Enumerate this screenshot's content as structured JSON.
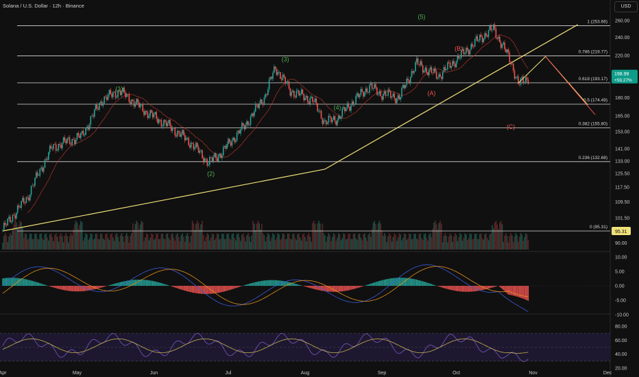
{
  "header": {
    "title": "Solana / U.S. Dollar · 12h · Binance",
    "currency": "USD"
  },
  "chart_data": {
    "type": "candlestick",
    "main_axis": {
      "ticks": [
        "260.00",
        "240.00",
        "220.00",
        "200.00",
        "180.00",
        "165.00",
        "153.00",
        "141.00",
        "133.00",
        "125.50",
        "117.50",
        "109.50",
        "101.50",
        "95.31",
        "90.00"
      ],
      "ylim": [
        88,
        268
      ]
    },
    "price_badge": {
      "price": "198.99",
      "change": "+59.27%"
    },
    "months": [
      "Apr",
      "May",
      "Jun",
      "Jul",
      "Aug",
      "Sep",
      "Oct",
      "Nov",
      "Dec"
    ],
    "fib_levels": [
      {
        "ratio": "1",
        "price": 253.66,
        "label": "1 (253.66)"
      },
      {
        "ratio": "0.786",
        "price": 219.77,
        "label": "0.786 (219.77)"
      },
      {
        "ratio": "0.618",
        "price": 193.17,
        "label": "0.618 (193.17)"
      },
      {
        "ratio": "0.5",
        "price": 174.49,
        "label": "0.5 (174.49)"
      },
      {
        "ratio": "0.382",
        "price": 155.8,
        "label": "0.382 (155.80)"
      },
      {
        "ratio": "0.236",
        "price": 132.68,
        "label": "0.236 (132.68)"
      },
      {
        "ratio": "0",
        "price": 95.31,
        "label": "0 (95.31)"
      }
    ],
    "wave_labels": [
      {
        "text": "(1)",
        "date": "May 18",
        "price": 186
      },
      {
        "text": "(2)",
        "date": "Jun 24",
        "price": 124
      },
      {
        "text": "(3)",
        "date": "Jul 24",
        "price": 214
      },
      {
        "text": "(4)",
        "date": "Aug 14",
        "price": 170
      },
      {
        "text": "(5)",
        "date": "Sep 17",
        "price": 262
      },
      {
        "text": "(A)",
        "date": "Sep 21",
        "price": 182
      },
      {
        "text": "(B)",
        "date": "Oct 02",
        "price": 225
      },
      {
        "text": "(C)",
        "date": "Oct 23",
        "price": 155
      }
    ],
    "macd_axis": {
      "ticks": [
        "10.00",
        "5.00",
        "0.00",
        "-5.00",
        "-10.00"
      ]
    },
    "rsi_axis": {
      "ticks": [
        "80.00",
        "60.00",
        "40.00",
        "20.00"
      ]
    },
    "colors": {
      "up": "#26a69a",
      "down": "#ef5350",
      "fib": "#d9d9d9",
      "trend": "#f0e27a",
      "wave_green": "#4caf50",
      "wave_red": "#ef5350",
      "ma": "#c0392b",
      "macd": "#3b5bdb",
      "signal": "#e8921e",
      "rsi": "#7e57c2",
      "rsi_ma": "#c9b24e",
      "badge_price": "#0f9d8a",
      "badge_fib": "#f0e27a"
    }
  }
}
